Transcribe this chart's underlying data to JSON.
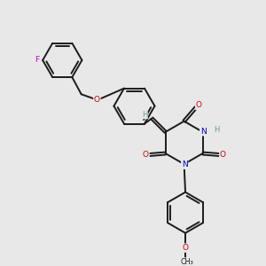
{
  "bg_color": "#e8e8e8",
  "bond_color": "#1a1a1a",
  "atom_colors": {
    "F": "#cc00cc",
    "O": "#cc0000",
    "N": "#0000cc",
    "H": "#669999",
    "C": "#1a1a1a"
  }
}
